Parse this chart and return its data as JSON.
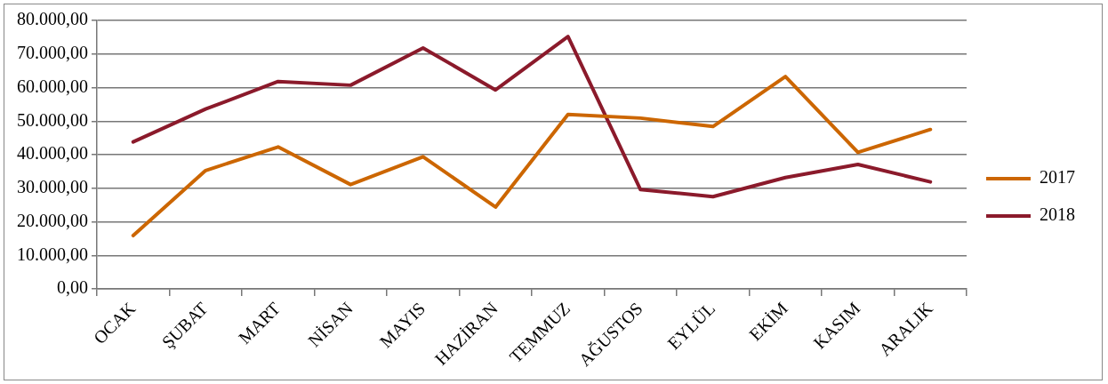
{
  "chart_data": {
    "type": "line",
    "categories": [
      "OCAK",
      "ŞUBAT",
      "MART",
      "NİSAN",
      "MAYIS",
      "HAZİRAN",
      "TEMMUZ",
      "AĞUSTOS",
      "EYLÜL",
      "EKİM",
      "KASIM",
      "ARALIK"
    ],
    "series": [
      {
        "name": "2017",
        "color": "#cc6600",
        "values": [
          15900,
          35300,
          42300,
          31100,
          39400,
          24400,
          52000,
          50900,
          48400,
          63300,
          40700,
          47500
        ]
      },
      {
        "name": "2018",
        "color": "#8b1a2b",
        "values": [
          43800,
          53600,
          61800,
          60700,
          71800,
          59300,
          75200,
          29600,
          27500,
          33200,
          37100,
          31900
        ]
      }
    ],
    "ylim": [
      0,
      80000
    ],
    "yticks": [
      {
        "value": 0,
        "label": "0,00"
      },
      {
        "value": 10000,
        "label": "10.000,00"
      },
      {
        "value": 20000,
        "label": "20.000,00"
      },
      {
        "value": 30000,
        "label": "30.000,00"
      },
      {
        "value": 40000,
        "label": "40.000,00"
      },
      {
        "value": 50000,
        "label": "50.000,00"
      },
      {
        "value": 60000,
        "label": "60.000,00"
      },
      {
        "value": 70000,
        "label": "70.000,00"
      },
      {
        "value": 80000,
        "label": "80.000,00"
      }
    ],
    "grid": "y",
    "legend": "right",
    "marker": "none",
    "line_style": "solid"
  }
}
